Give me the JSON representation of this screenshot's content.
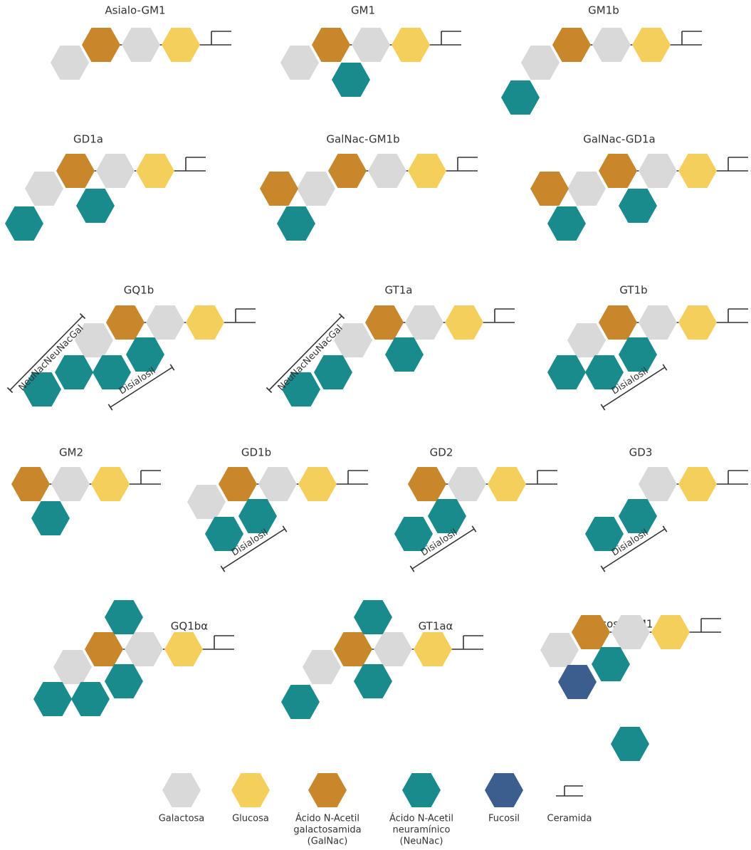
{
  "structures": [
    {
      "name": "Asialo-GM1"
    },
    {
      "name": "GM1"
    },
    {
      "name": "GM1b"
    },
    {
      "name": "GD1a"
    },
    {
      "name": "GalNac-GM1b"
    },
    {
      "name": "GalNac-GD1a"
    },
    {
      "name": "GQ1b",
      "annotations": [
        "NeuNacNeuNacGal",
        "Disialosil"
      ]
    },
    {
      "name": "GT1a",
      "annotations": [
        "NeuNacNeuNacGal"
      ]
    },
    {
      "name": "GT1b",
      "annotations": [
        "Disialosil"
      ]
    },
    {
      "name": "GM2"
    },
    {
      "name": "GD1b",
      "annotations": [
        "Disialosil"
      ]
    },
    {
      "name": "GD2",
      "annotations": [
        "Disialosil"
      ]
    },
    {
      "name": "GD3",
      "annotations": [
        "Disialosil"
      ]
    },
    {
      "name": "GQ1bα"
    },
    {
      "name": "GT1aα"
    },
    {
      "name": "Fucosil-GM1"
    }
  ],
  "legend": [
    {
      "label": [
        "Galactosa"
      ]
    },
    {
      "label": [
        "Glucosa"
      ]
    },
    {
      "label": [
        "Ácido N-Acetil",
        "galactosamida",
        "(GalNac)"
      ]
    },
    {
      "label": [
        "Ácido N-Acetil",
        "neuramínico",
        "(NeuNac)"
      ]
    },
    {
      "label": [
        "Fucosil"
      ]
    },
    {
      "label": [
        "Ceramida"
      ]
    }
  ]
}
